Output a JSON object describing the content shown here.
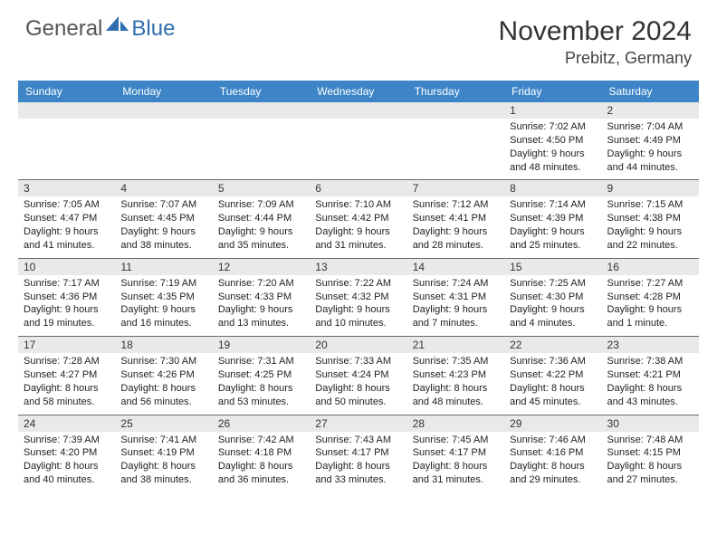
{
  "logo": {
    "general": "General",
    "blue": "Blue"
  },
  "header": {
    "title": "November 2024",
    "location": "Prebitz, Germany"
  },
  "columns": [
    "Sunday",
    "Monday",
    "Tuesday",
    "Wednesday",
    "Thursday",
    "Friday",
    "Saturday"
  ],
  "colors": {
    "header_bg": "#3d85c6",
    "header_fg": "#ffffff",
    "daynum_bg": "#e9e9e9",
    "row_border": "#6a6a6a",
    "logo_blue": "#2f6fb0",
    "text": "#333333"
  },
  "weeks": [
    [
      {
        "n": "",
        "sr": "",
        "ss": "",
        "dl1": "",
        "dl2": ""
      },
      {
        "n": "",
        "sr": "",
        "ss": "",
        "dl1": "",
        "dl2": ""
      },
      {
        "n": "",
        "sr": "",
        "ss": "",
        "dl1": "",
        "dl2": ""
      },
      {
        "n": "",
        "sr": "",
        "ss": "",
        "dl1": "",
        "dl2": ""
      },
      {
        "n": "",
        "sr": "",
        "ss": "",
        "dl1": "",
        "dl2": ""
      },
      {
        "n": "1",
        "sr": "Sunrise: 7:02 AM",
        "ss": "Sunset: 4:50 PM",
        "dl1": "Daylight: 9 hours",
        "dl2": "and 48 minutes."
      },
      {
        "n": "2",
        "sr": "Sunrise: 7:04 AM",
        "ss": "Sunset: 4:49 PM",
        "dl1": "Daylight: 9 hours",
        "dl2": "and 44 minutes."
      }
    ],
    [
      {
        "n": "3",
        "sr": "Sunrise: 7:05 AM",
        "ss": "Sunset: 4:47 PM",
        "dl1": "Daylight: 9 hours",
        "dl2": "and 41 minutes."
      },
      {
        "n": "4",
        "sr": "Sunrise: 7:07 AM",
        "ss": "Sunset: 4:45 PM",
        "dl1": "Daylight: 9 hours",
        "dl2": "and 38 minutes."
      },
      {
        "n": "5",
        "sr": "Sunrise: 7:09 AM",
        "ss": "Sunset: 4:44 PM",
        "dl1": "Daylight: 9 hours",
        "dl2": "and 35 minutes."
      },
      {
        "n": "6",
        "sr": "Sunrise: 7:10 AM",
        "ss": "Sunset: 4:42 PM",
        "dl1": "Daylight: 9 hours",
        "dl2": "and 31 minutes."
      },
      {
        "n": "7",
        "sr": "Sunrise: 7:12 AM",
        "ss": "Sunset: 4:41 PM",
        "dl1": "Daylight: 9 hours",
        "dl2": "and 28 minutes."
      },
      {
        "n": "8",
        "sr": "Sunrise: 7:14 AM",
        "ss": "Sunset: 4:39 PM",
        "dl1": "Daylight: 9 hours",
        "dl2": "and 25 minutes."
      },
      {
        "n": "9",
        "sr": "Sunrise: 7:15 AM",
        "ss": "Sunset: 4:38 PM",
        "dl1": "Daylight: 9 hours",
        "dl2": "and 22 minutes."
      }
    ],
    [
      {
        "n": "10",
        "sr": "Sunrise: 7:17 AM",
        "ss": "Sunset: 4:36 PM",
        "dl1": "Daylight: 9 hours",
        "dl2": "and 19 minutes."
      },
      {
        "n": "11",
        "sr": "Sunrise: 7:19 AM",
        "ss": "Sunset: 4:35 PM",
        "dl1": "Daylight: 9 hours",
        "dl2": "and 16 minutes."
      },
      {
        "n": "12",
        "sr": "Sunrise: 7:20 AM",
        "ss": "Sunset: 4:33 PM",
        "dl1": "Daylight: 9 hours",
        "dl2": "and 13 minutes."
      },
      {
        "n": "13",
        "sr": "Sunrise: 7:22 AM",
        "ss": "Sunset: 4:32 PM",
        "dl1": "Daylight: 9 hours",
        "dl2": "and 10 minutes."
      },
      {
        "n": "14",
        "sr": "Sunrise: 7:24 AM",
        "ss": "Sunset: 4:31 PM",
        "dl1": "Daylight: 9 hours",
        "dl2": "and 7 minutes."
      },
      {
        "n": "15",
        "sr": "Sunrise: 7:25 AM",
        "ss": "Sunset: 4:30 PM",
        "dl1": "Daylight: 9 hours",
        "dl2": "and 4 minutes."
      },
      {
        "n": "16",
        "sr": "Sunrise: 7:27 AM",
        "ss": "Sunset: 4:28 PM",
        "dl1": "Daylight: 9 hours",
        "dl2": "and 1 minute."
      }
    ],
    [
      {
        "n": "17",
        "sr": "Sunrise: 7:28 AM",
        "ss": "Sunset: 4:27 PM",
        "dl1": "Daylight: 8 hours",
        "dl2": "and 58 minutes."
      },
      {
        "n": "18",
        "sr": "Sunrise: 7:30 AM",
        "ss": "Sunset: 4:26 PM",
        "dl1": "Daylight: 8 hours",
        "dl2": "and 56 minutes."
      },
      {
        "n": "19",
        "sr": "Sunrise: 7:31 AM",
        "ss": "Sunset: 4:25 PM",
        "dl1": "Daylight: 8 hours",
        "dl2": "and 53 minutes."
      },
      {
        "n": "20",
        "sr": "Sunrise: 7:33 AM",
        "ss": "Sunset: 4:24 PM",
        "dl1": "Daylight: 8 hours",
        "dl2": "and 50 minutes."
      },
      {
        "n": "21",
        "sr": "Sunrise: 7:35 AM",
        "ss": "Sunset: 4:23 PM",
        "dl1": "Daylight: 8 hours",
        "dl2": "and 48 minutes."
      },
      {
        "n": "22",
        "sr": "Sunrise: 7:36 AM",
        "ss": "Sunset: 4:22 PM",
        "dl1": "Daylight: 8 hours",
        "dl2": "and 45 minutes."
      },
      {
        "n": "23",
        "sr": "Sunrise: 7:38 AM",
        "ss": "Sunset: 4:21 PM",
        "dl1": "Daylight: 8 hours",
        "dl2": "and 43 minutes."
      }
    ],
    [
      {
        "n": "24",
        "sr": "Sunrise: 7:39 AM",
        "ss": "Sunset: 4:20 PM",
        "dl1": "Daylight: 8 hours",
        "dl2": "and 40 minutes."
      },
      {
        "n": "25",
        "sr": "Sunrise: 7:41 AM",
        "ss": "Sunset: 4:19 PM",
        "dl1": "Daylight: 8 hours",
        "dl2": "and 38 minutes."
      },
      {
        "n": "26",
        "sr": "Sunrise: 7:42 AM",
        "ss": "Sunset: 4:18 PM",
        "dl1": "Daylight: 8 hours",
        "dl2": "and 36 minutes."
      },
      {
        "n": "27",
        "sr": "Sunrise: 7:43 AM",
        "ss": "Sunset: 4:17 PM",
        "dl1": "Daylight: 8 hours",
        "dl2": "and 33 minutes."
      },
      {
        "n": "28",
        "sr": "Sunrise: 7:45 AM",
        "ss": "Sunset: 4:17 PM",
        "dl1": "Daylight: 8 hours",
        "dl2": "and 31 minutes."
      },
      {
        "n": "29",
        "sr": "Sunrise: 7:46 AM",
        "ss": "Sunset: 4:16 PM",
        "dl1": "Daylight: 8 hours",
        "dl2": "and 29 minutes."
      },
      {
        "n": "30",
        "sr": "Sunrise: 7:48 AM",
        "ss": "Sunset: 4:15 PM",
        "dl1": "Daylight: 8 hours",
        "dl2": "and 27 minutes."
      }
    ]
  ]
}
